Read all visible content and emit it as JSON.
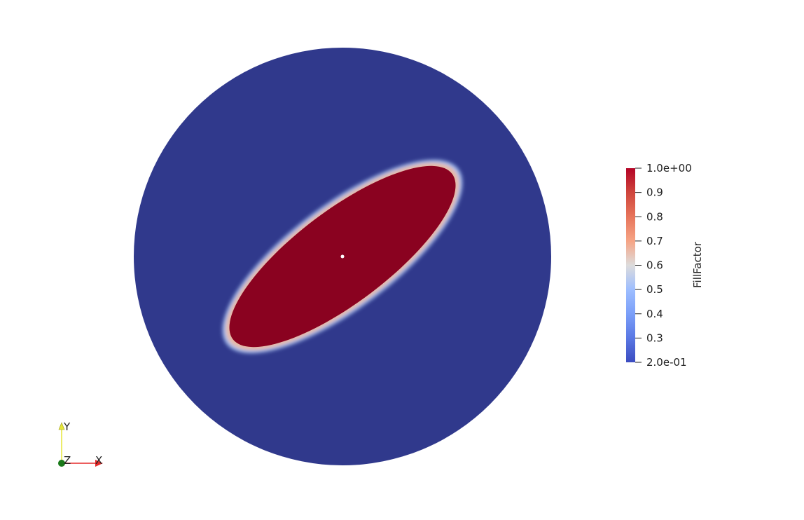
{
  "colors": {
    "background": "#ffffff",
    "disk_fill": "#30398c",
    "blob_fill": "#8a0220",
    "axis_x": "#e52929",
    "axis_y": "#e6e638",
    "axis_z": "#1a7a1a"
  },
  "scalar_bar": {
    "title": "FillFactor",
    "colormap": "Cool to Warm",
    "range": [
      0.2,
      1.0
    ],
    "tick_labels": [
      "1.0e+00",
      "0.9",
      "0.8",
      "0.7",
      "0.6",
      "0.5",
      "0.4",
      "0.3",
      "2.0e-01"
    ]
  },
  "orientation_axes": {
    "x_label": "X",
    "y_label": "Y",
    "z_label": "Z"
  }
}
